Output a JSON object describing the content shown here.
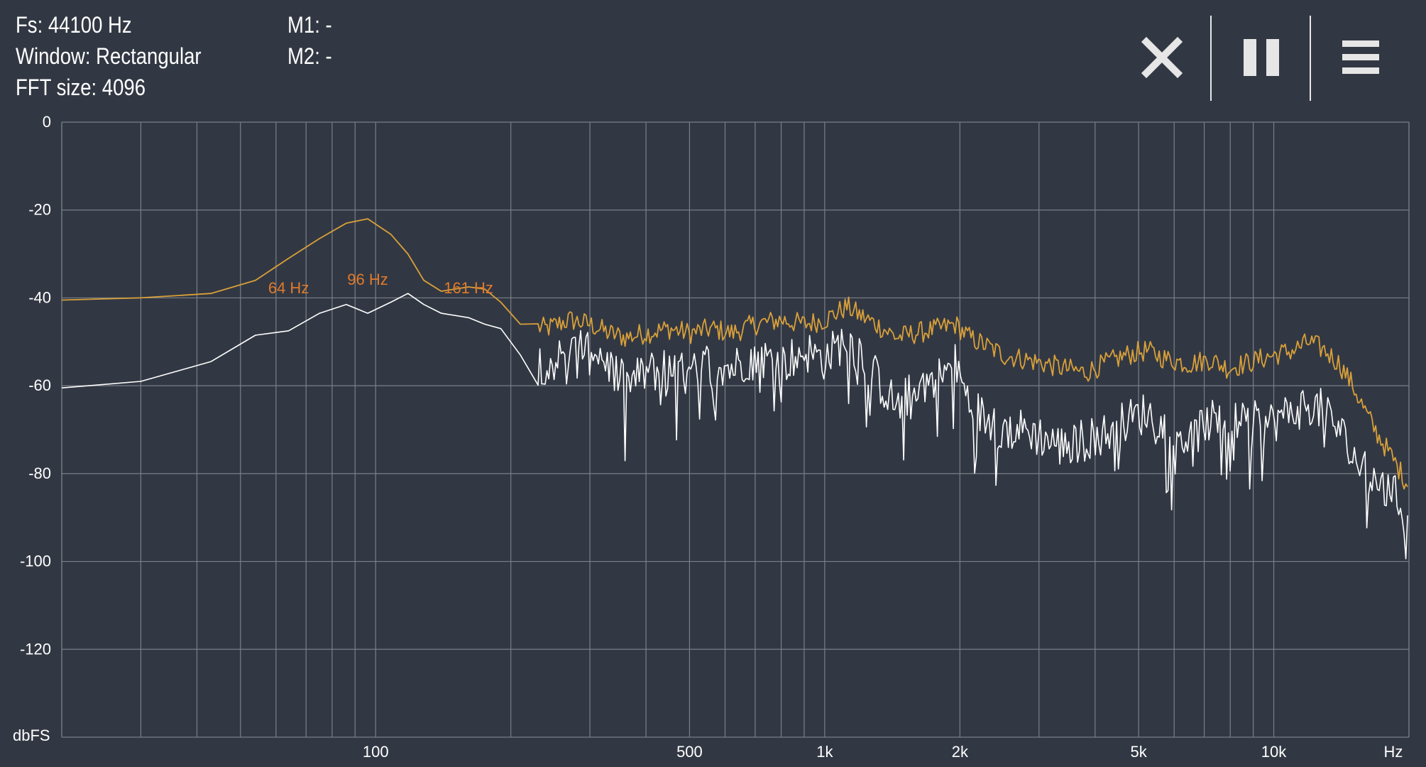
{
  "info": {
    "fs": "Fs: 44100 Hz",
    "window": "Window: Rectangular",
    "fft_size": "FFT size: 4096",
    "m1": "M1: -",
    "m2": "M2: -"
  },
  "toolbar": {
    "close_icon": "close-icon",
    "pause_icon": "pause-icon",
    "menu_icon": "menu-icon"
  },
  "colors": {
    "background": "#323843",
    "grid": "#7a7f88",
    "peak_hold": "#d9a03a",
    "live": "#ffffff",
    "peak_label": "#e07a2c"
  },
  "chart_data": {
    "type": "line",
    "x_scale": "log",
    "xlim": [
      20,
      20000
    ],
    "ylim": [
      -140,
      0
    ],
    "ylabel": "dbFS",
    "xunit": "Hz",
    "y_ticks": [
      "0",
      "-20",
      "-40",
      "-60",
      "-80",
      "-100",
      "-120"
    ],
    "x_tick_labels": [
      {
        "value": 100,
        "label": "100"
      },
      {
        "value": 500,
        "label": "500"
      },
      {
        "value": 1000,
        "label": "1k"
      },
      {
        "value": 2000,
        "label": "2k"
      },
      {
        "value": 5000,
        "label": "5k"
      },
      {
        "value": 10000,
        "label": "10k"
      }
    ],
    "peak_labels": [
      {
        "freq": 64,
        "db": -39,
        "label": "64 Hz"
      },
      {
        "freq": 96,
        "db": -37,
        "label": "96 Hz"
      },
      {
        "freq": 161,
        "db": -39,
        "label": "161 Hz"
      }
    ],
    "series": [
      {
        "role": "peak-hold",
        "points": [
          [
            20,
            -40.5
          ],
          [
            30,
            -40
          ],
          [
            43,
            -39
          ],
          [
            54,
            -36
          ],
          [
            64,
            -31
          ],
          [
            75,
            -26.5
          ],
          [
            86,
            -23
          ],
          [
            96,
            -22
          ],
          [
            108,
            -25.5
          ],
          [
            118,
            -30
          ],
          [
            128,
            -36
          ],
          [
            140,
            -38.5
          ],
          [
            161,
            -37.5
          ],
          [
            175,
            -38
          ],
          [
            190,
            -41
          ],
          [
            210,
            -46
          ],
          [
            240,
            -47
          ],
          [
            270,
            -45
          ],
          [
            300,
            -46
          ],
          [
            330,
            -48
          ],
          [
            360,
            -49
          ],
          [
            400,
            -48
          ],
          [
            450,
            -47
          ],
          [
            500,
            -48
          ],
          [
            560,
            -47
          ],
          [
            620,
            -48
          ],
          [
            700,
            -46
          ],
          [
            800,
            -45
          ],
          [
            900,
            -46
          ],
          [
            1000,
            -45
          ],
          [
            1120,
            -42
          ],
          [
            1200,
            -44
          ],
          [
            1300,
            -46
          ],
          [
            1450,
            -49
          ],
          [
            1600,
            -48
          ],
          [
            1800,
            -47
          ],
          [
            1950,
            -46
          ],
          [
            2100,
            -49
          ],
          [
            2300,
            -51
          ],
          [
            2500,
            -53
          ],
          [
            2800,
            -54
          ],
          [
            3100,
            -55
          ],
          [
            3400,
            -56
          ],
          [
            3800,
            -57
          ],
          [
            4200,
            -55
          ],
          [
            4700,
            -53
          ],
          [
            5200,
            -52
          ],
          [
            5800,
            -54
          ],
          [
            6500,
            -55
          ],
          [
            7200,
            -54
          ],
          [
            7900,
            -56
          ],
          [
            8600,
            -55
          ],
          [
            9300,
            -54
          ],
          [
            10000,
            -53
          ],
          [
            11000,
            -52
          ],
          [
            12000,
            -50
          ],
          [
            13000,
            -52
          ],
          [
            14000,
            -55
          ],
          [
            15000,
            -60
          ],
          [
            16000,
            -66
          ],
          [
            17000,
            -71
          ],
          [
            18000,
            -75
          ],
          [
            19000,
            -79
          ],
          [
            20000,
            -83
          ]
        ]
      },
      {
        "role": "live",
        "points": [
          [
            20,
            -60.5
          ],
          [
            30,
            -59
          ],
          [
            43,
            -54.5
          ],
          [
            54,
            -48.5
          ],
          [
            64,
            -47.5
          ],
          [
            75,
            -43.5
          ],
          [
            86,
            -41.5
          ],
          [
            96,
            -43.5
          ],
          [
            108,
            -41
          ],
          [
            118,
            -39
          ],
          [
            128,
            -41.5
          ],
          [
            140,
            -43.5
          ],
          [
            161,
            -44.5
          ],
          [
            175,
            -46
          ],
          [
            190,
            -47
          ],
          [
            210,
            -53
          ],
          [
            240,
            -55
          ],
          [
            270,
            -53
          ],
          [
            300,
            -50
          ],
          [
            330,
            -55
          ],
          [
            360,
            -60
          ],
          [
            400,
            -57
          ],
          [
            450,
            -56
          ],
          [
            500,
            -58
          ],
          [
            560,
            -54
          ],
          [
            620,
            -56
          ],
          [
            700,
            -53
          ],
          [
            800,
            -55
          ],
          [
            900,
            -52
          ],
          [
            1000,
            -54
          ],
          [
            1120,
            -49
          ],
          [
            1200,
            -52
          ],
          [
            1300,
            -58
          ],
          [
            1450,
            -65
          ],
          [
            1600,
            -60
          ],
          [
            1800,
            -58
          ],
          [
            1950,
            -55
          ],
          [
            2100,
            -64
          ],
          [
            2300,
            -68
          ],
          [
            2500,
            -70
          ],
          [
            2800,
            -70
          ],
          [
            3100,
            -72
          ],
          [
            3400,
            -74
          ],
          [
            3800,
            -72
          ],
          [
            4200,
            -71
          ],
          [
            4700,
            -68
          ],
          [
            5200,
            -66
          ],
          [
            5800,
            -70
          ],
          [
            6500,
            -72
          ],
          [
            7200,
            -68
          ],
          [
            7900,
            -70
          ],
          [
            8600,
            -67
          ],
          [
            9300,
            -69
          ],
          [
            10000,
            -68
          ],
          [
            11000,
            -66
          ],
          [
            12000,
            -64
          ],
          [
            13000,
            -66
          ],
          [
            14000,
            -70
          ],
          [
            15000,
            -76
          ],
          [
            16000,
            -80
          ],
          [
            17000,
            -82
          ],
          [
            18000,
            -84
          ],
          [
            19000,
            -86
          ],
          [
            20000,
            -94
          ]
        ]
      }
    ]
  }
}
